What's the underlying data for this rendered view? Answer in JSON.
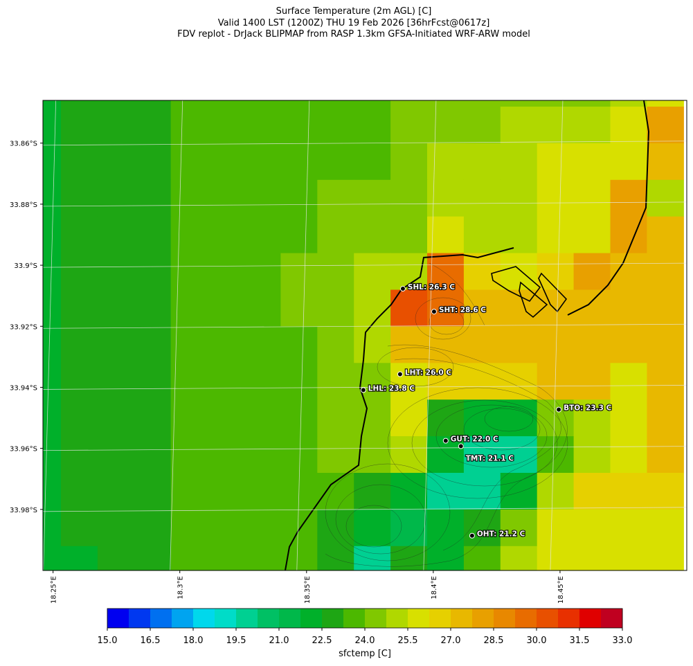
{
  "chart_data": {
    "type": "heatmap",
    "title": [
      "Surface Temperature (2m AGL) [C]",
      "Valid 1400 LST (1200Z) THU 19 Feb 2026 [36hrFcst@0617z]",
      "FDV replot - DrJack BLIPMAP from RASP 1.3km GFSA-Initiated WRF-ARW model"
    ],
    "xlim": [
      18.246,
      18.5
    ],
    "ylim": [
      -34.0,
      -33.846
    ],
    "xticks": [
      {
        "value": 18.25,
        "label": "18.25°E"
      },
      {
        "value": 18.3,
        "label": "18.3°E"
      },
      {
        "value": 18.35,
        "label": "18.35°E"
      },
      {
        "value": 18.4,
        "label": "18.4°E"
      },
      {
        "value": 18.45,
        "label": "18.45°E"
      }
    ],
    "yticks": [
      {
        "value": -33.86,
        "label": "33.86°S"
      },
      {
        "value": -33.88,
        "label": "33.88°S"
      },
      {
        "value": -33.9,
        "label": "33.9°S"
      },
      {
        "value": -33.92,
        "label": "33.92°S"
      },
      {
        "value": -33.94,
        "label": "33.94°S"
      },
      {
        "value": -33.96,
        "label": "33.96°S"
      },
      {
        "value": -33.98,
        "label": "33.98°S"
      }
    ],
    "grid": true,
    "values": [
      [
        22,
        22.9,
        22.9,
        22.9,
        23.6,
        23.6,
        23.6,
        23.6,
        23.6,
        23.6,
        24.4,
        24.4,
        24.4,
        24.4,
        24.4,
        24.4,
        25.1,
        25.9
      ],
      [
        22,
        22.9,
        22.9,
        22.9,
        23.6,
        23.6,
        23.6,
        23.6,
        23.6,
        23.6,
        24.4,
        24.4,
        24.4,
        25.1,
        25.1,
        25.1,
        25.9,
        28.1
      ],
      [
        22,
        22.9,
        22.9,
        22.9,
        23.6,
        23.6,
        23.6,
        23.6,
        23.6,
        23.6,
        24.4,
        25.1,
        25.1,
        25.1,
        25.9,
        25.9,
        25.9,
        27.4
      ],
      [
        22,
        22.9,
        22.9,
        22.9,
        23.6,
        23.6,
        23.6,
        23.6,
        24.4,
        24.4,
        24.4,
        25.1,
        25.1,
        25.1,
        25.9,
        25.9,
        28.1,
        25.1
      ],
      [
        22,
        22.9,
        22.9,
        22.9,
        23.6,
        23.6,
        23.6,
        23.6,
        24.4,
        24.4,
        24.4,
        25.9,
        25.1,
        25.1,
        25.9,
        25.9,
        28.1,
        27.4
      ],
      [
        22,
        22.9,
        22.9,
        22.9,
        23.6,
        23.6,
        23.6,
        24.4,
        24.4,
        25.1,
        25.1,
        29.6,
        26.6,
        25.9,
        26.6,
        28.1,
        27.4,
        27.4
      ],
      [
        22,
        22.9,
        22.9,
        22.9,
        23.6,
        23.6,
        23.6,
        24.4,
        24.4,
        25.1,
        30.4,
        29.6,
        27.4,
        27.4,
        27.4,
        27.4,
        27.4,
        27.4
      ],
      [
        22,
        22.9,
        22.9,
        22.9,
        23.6,
        23.6,
        23.6,
        23.6,
        24.4,
        25.1,
        27.4,
        27.4,
        27.4,
        27.4,
        27.4,
        27.4,
        27.4,
        27.4
      ],
      [
        22,
        22.9,
        22.9,
        22.9,
        23.6,
        23.6,
        23.6,
        23.6,
        24.4,
        24.4,
        25.9,
        26.6,
        26.6,
        26.6,
        27.4,
        27.4,
        25.9,
        27.4
      ],
      [
        22,
        22.9,
        22.9,
        22.9,
        23.6,
        23.6,
        23.6,
        23.6,
        24.4,
        24.4,
        25.9,
        22.9,
        22,
        22,
        24.4,
        25.1,
        25.9,
        27.4
      ],
      [
        22,
        22.9,
        22.9,
        22.9,
        23.6,
        23.6,
        23.6,
        23.6,
        24.4,
        24.4,
        25.1,
        22,
        19.9,
        19.9,
        23.6,
        25.1,
        25.9,
        27.4
      ],
      [
        22,
        22.9,
        22.9,
        22.9,
        23.6,
        23.6,
        23.6,
        23.6,
        23.6,
        22.9,
        22,
        19.9,
        19.9,
        22,
        25.1,
        26.6,
        26.6,
        26.6
      ],
      [
        22,
        22.9,
        22.9,
        22.9,
        23.6,
        23.6,
        23.6,
        23.6,
        22.9,
        22,
        21.4,
        22,
        22.9,
        24.4,
        25.9,
        25.9,
        25.9,
        25.9
      ],
      [
        22,
        22,
        22.9,
        22.9,
        23.6,
        23.6,
        23.6,
        23.6,
        22.9,
        19.9,
        22.9,
        22,
        23.6,
        25.1,
        25.9,
        25.9,
        25.9,
        25.9
      ]
    ],
    "stations": [
      {
        "label": "SHL: 26.3 C",
        "lon": 18.388,
        "lat": -33.9077
      },
      {
        "label": "SHT: 28.6 C",
        "lon": 18.4003,
        "lat": -33.9152
      },
      {
        "label": "LHT: 26.0 C",
        "lon": 18.3869,
        "lat": -33.9357
      },
      {
        "label": "LHL: 23.8 C",
        "lon": 18.3724,
        "lat": -33.9409
      },
      {
        "label": "BTO: 23.3 C",
        "lon": 18.4495,
        "lat": -33.9473
      },
      {
        "label": "GUT: 22.0 C",
        "lon": 18.4049,
        "lat": -33.9575
      },
      {
        "label": "TMT: 21.1 C",
        "lon": 18.4109,
        "lat": -33.9593
      },
      {
        "label": "OHT: 21.2 C",
        "lon": 18.4153,
        "lat": -33.9886
      }
    ],
    "colorbar": {
      "label": "sfctemp [C]",
      "levels": [
        15,
        15.75,
        16.5,
        17.25,
        18,
        18.75,
        19.5,
        20.25,
        21,
        21.75,
        22.5,
        23.25,
        24,
        24.75,
        25.5,
        26.25,
        27,
        27.75,
        28.5,
        29.25,
        30,
        30.75,
        31.5,
        32.25,
        33
      ],
      "colors": [
        "#0000f0",
        "#0038f0",
        "#0070f0",
        "#00a4f0",
        "#00d8ec",
        "#00dcc8",
        "#00d092",
        "#00c064",
        "#00b84a",
        "#00b02a",
        "#1ea614",
        "#4cb800",
        "#80c800",
        "#b0d800",
        "#d8e000",
        "#e6d000",
        "#e8b800",
        "#e8a000",
        "#e88800",
        "#e86c00",
        "#e85000",
        "#e83000",
        "#e00000",
        "#c00020"
      ],
      "ticks": [
        {
          "value": 15,
          "label": "15.0"
        },
        {
          "value": 16.5,
          "label": "16.5"
        },
        {
          "value": 18,
          "label": "18.0"
        },
        {
          "value": 19.5,
          "label": "19.5"
        },
        {
          "value": 21,
          "label": "21.0"
        },
        {
          "value": 22.5,
          "label": "22.5"
        },
        {
          "value": 24,
          "label": "24.0"
        },
        {
          "value": 25.5,
          "label": "25.5"
        },
        {
          "value": 27,
          "label": "27.0"
        },
        {
          "value": 28.5,
          "label": "28.5"
        },
        {
          "value": 30,
          "label": "30.0"
        },
        {
          "value": 31.5,
          "label": "31.5"
        },
        {
          "value": 33,
          "label": "33.0"
        }
      ]
    }
  }
}
